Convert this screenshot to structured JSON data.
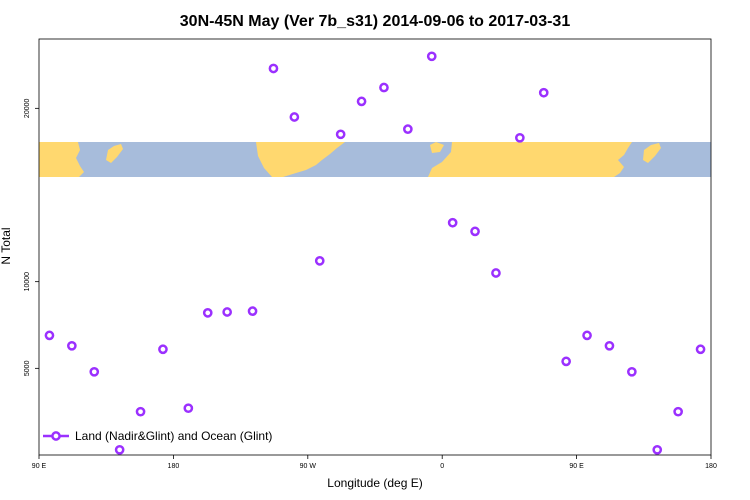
{
  "chart_data": {
    "type": "scatter",
    "title": "30N-45N May (Ver 7b_s31)   2014-09-06 to 2017-03-31",
    "xlabel": "Longitude (deg E)",
    "ylabel": "N Total",
    "xlim": [
      90,
      540
    ],
    "ylim": [
      0,
      24000
    ],
    "x_ticks": [
      {
        "value": 90,
        "label": "90 E"
      },
      {
        "value": 180,
        "label": "180"
      },
      {
        "value": 270,
        "label": "90 W"
      },
      {
        "value": 360,
        "label": "0"
      },
      {
        "value": 450,
        "label": "90 E"
      },
      {
        "value": 540,
        "label": "180"
      }
    ],
    "y_ticks": [
      {
        "value": 5000,
        "label": "5000"
      },
      {
        "value": 10000,
        "label": "10000"
      },
      {
        "value": 20000,
        "label": "20000"
      }
    ],
    "series": [
      {
        "name": "Land (Nadir&Glint) and Ocean (Glint)",
        "color": "#9b30ff",
        "points": [
          {
            "x": 97,
            "y": 6900
          },
          {
            "x": 112,
            "y": 6300
          },
          {
            "x": 127,
            "y": 4800
          },
          {
            "x": 144,
            "y": 300
          },
          {
            "x": 158,
            "y": 2500
          },
          {
            "x": 173,
            "y": 6100
          },
          {
            "x": 190,
            "y": 2700
          },
          {
            "x": 203,
            "y": 8200
          },
          {
            "x": 216,
            "y": 8250
          },
          {
            "x": 233,
            "y": 8300
          },
          {
            "x": 247,
            "y": 22300
          },
          {
            "x": 261,
            "y": 19500
          },
          {
            "x": 278,
            "y": 11200
          },
          {
            "x": 292,
            "y": 18500
          },
          {
            "x": 306,
            "y": 20400
          },
          {
            "x": 321,
            "y": 21200
          },
          {
            "x": 337,
            "y": 18800
          },
          {
            "x": 353,
            "y": 23000
          },
          {
            "x": 367,
            "y": 13400
          },
          {
            "x": 382,
            "y": 12900
          },
          {
            "x": 396,
            "y": 10500
          },
          {
            "x": 412,
            "y": 18300
          },
          {
            "x": 428,
            "y": 20900
          },
          {
            "x": 443,
            "y": 5400
          },
          {
            "x": 457,
            "y": 6900
          },
          {
            "x": 472,
            "y": 6300
          },
          {
            "x": 487,
            "y": 4800
          },
          {
            "x": 504,
            "y": 300
          },
          {
            "x": 518,
            "y": 2500
          },
          {
            "x": 533,
            "y": 6100
          }
        ]
      }
    ],
    "legend": {
      "placement": "bottom-left"
    },
    "map_strip": {
      "lat_range": "30N-45N",
      "ocean_color": "#a7bcdb",
      "land_color": "#ffd86f"
    }
  }
}
